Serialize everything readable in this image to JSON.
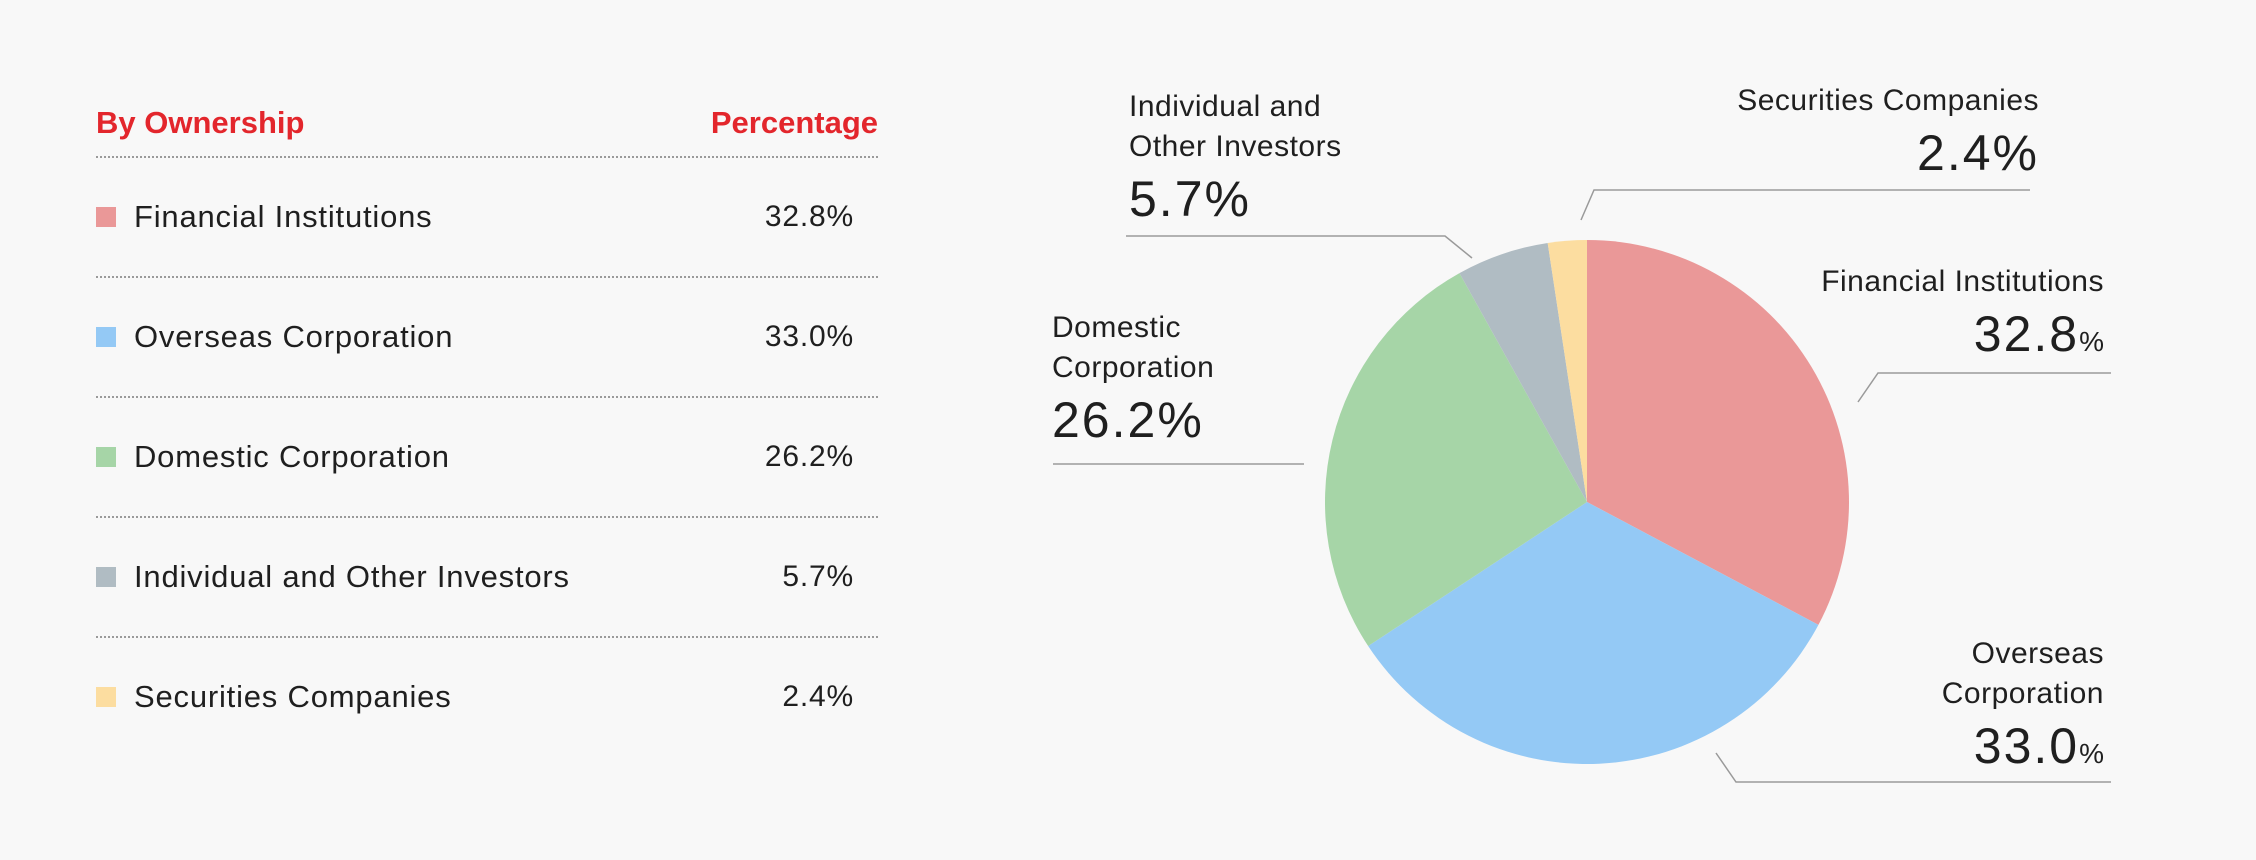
{
  "table": {
    "header_label": "By Ownership",
    "header_value": "Percentage",
    "rows": [
      {
        "label": "Financial Institutions",
        "value": "32.8%",
        "color": "#ea9898"
      },
      {
        "label": "Overseas Corporation",
        "value": "33.0%",
        "color": "#94c9f5"
      },
      {
        "label": "Domestic Corporation",
        "value": "26.2%",
        "color": "#a6d5a7"
      },
      {
        "label": "Individual and Other Investors",
        "value": "5.7%",
        "color": "#b0bcc3"
      },
      {
        "label": "Securities Companies",
        "value": "2.4%",
        "color": "#fcdda0"
      }
    ]
  },
  "chart_data": {
    "type": "pie",
    "title": "",
    "unit": "%",
    "slices": [
      {
        "name": "Financial Institutions",
        "value": 32.8,
        "color": "#ea9898"
      },
      {
        "name": "Overseas Corporation",
        "value": 33.0,
        "color": "#94c9f5"
      },
      {
        "name": "Domestic Corporation",
        "value": 26.2,
        "color": "#a6d5a7"
      },
      {
        "name": "Individual and Other Investors",
        "value": 5.7,
        "color": "#b0bcc3"
      },
      {
        "name": "Securities Companies",
        "value": 2.4,
        "color": "#fcdda0"
      }
    ],
    "callouts": {
      "financial": {
        "name": "Financial Institutions",
        "value": "32.8",
        "unit": "%"
      },
      "overseas": {
        "line1": "Overseas",
        "line2": "Corporation",
        "value": "33.0",
        "unit": "%"
      },
      "domestic": {
        "line1": "Domestic",
        "line2": "Corporation",
        "value": "26.2",
        "unit": "%"
      },
      "individual": {
        "line1": "Individual and",
        "line2": "Other Investors",
        "value": "5.7",
        "unit": "%"
      },
      "securities": {
        "name": "Securities Companies",
        "value": "2.4",
        "unit": "%"
      }
    }
  }
}
